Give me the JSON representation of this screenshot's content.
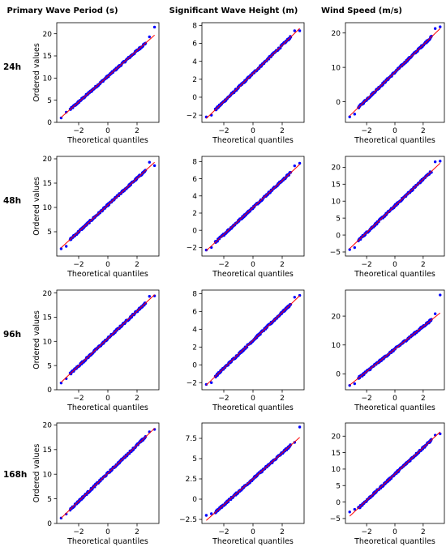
{
  "columns": [
    "Primary Wave Period (s)",
    "Significant Wave Height (m)",
    "Wind Speed (m/s)"
  ],
  "rows": [
    "24h",
    "48h",
    "96h",
    "168h"
  ],
  "chart_data": [
    {
      "type": "scatter",
      "id": "24h-period",
      "title": "Primary Wave Period (s)",
      "xlabel": "Theoretical quantiles",
      "ylabel": "Ordered values",
      "xlim": [
        -3.5,
        3.5
      ],
      "ylim": [
        0,
        22.5
      ],
      "xticks": [
        -2,
        0,
        2
      ],
      "yticks": [
        0,
        5,
        10,
        15,
        20
      ],
      "slope": 2.9,
      "intercept": 10.4,
      "q_low": [
        -3.2,
        -2.85
      ],
      "v_low": [
        1.0,
        2.3
      ],
      "q_high": [
        2.85,
        3.2
      ],
      "v_high": [
        19.3,
        21.5
      ],
      "points": [
        [
          -3.2,
          1.0
        ],
        [
          -2.85,
          2.3
        ],
        [
          2.85,
          19.3
        ],
        [
          3.2,
          21.5
        ]
      ],
      "line": [
        [
          -3.2,
          1.12
        ],
        [
          3.2,
          19.68
        ]
      ]
    },
    {
      "type": "scatter",
      "id": "24h-height",
      "title": "Significant Wave Height (m)",
      "xlabel": "Theoretical quantiles",
      "ylabel": "",
      "xlim": [
        -3.5,
        3.5
      ],
      "ylim": [
        -2.8,
        8.3
      ],
      "xticks": [
        -2,
        0,
        2
      ],
      "yticks": [
        -2,
        0,
        2,
        4,
        6,
        8
      ],
      "slope": 1.57,
      "intercept": 2.65,
      "q_low": [
        -3.2,
        -2.85
      ],
      "v_low": [
        -2.2,
        -2.0
      ],
      "q_high": [
        2.85,
        3.2
      ],
      "v_high": [
        7.4,
        7.4
      ],
      "points": [
        [
          -3.2,
          -2.2
        ],
        [
          -2.85,
          -2.0
        ],
        [
          2.85,
          7.4
        ],
        [
          3.2,
          7.4
        ]
      ],
      "line": [
        [
          -3.2,
          -2.37
        ],
        [
          3.2,
          7.67
        ]
      ]
    },
    {
      "type": "scatter",
      "id": "24h-wind",
      "title": "Wind Speed (m/s)",
      "xlabel": "Theoretical quantiles",
      "ylabel": "",
      "xlim": [
        -3.5,
        3.5
      ],
      "ylim": [
        -6.0,
        23.0
      ],
      "xticks": [
        -2,
        0,
        2
      ],
      "yticks": [
        0,
        10,
        20
      ],
      "slope": 3.97,
      "intercept": 8.6,
      "q_low": [
        -3.2,
        -2.85
      ],
      "v_low": [
        -4.4,
        -3.6
      ],
      "q_high": [
        2.85,
        3.2
      ],
      "v_high": [
        21.3,
        21.8
      ],
      "points": [
        [
          -3.2,
          -4.4
        ],
        [
          -2.85,
          -3.6
        ],
        [
          2.85,
          21.3
        ],
        [
          3.2,
          21.8
        ]
      ],
      "line": [
        [
          -3.2,
          -4.1
        ],
        [
          3.2,
          21.3
        ]
      ]
    },
    {
      "type": "scatter",
      "id": "48h-period",
      "title": "",
      "xlabel": "Theoretical quantiles",
      "ylabel": "Ordered values",
      "xlim": [
        -3.5,
        3.5
      ],
      "ylim": [
        0,
        20.5
      ],
      "xticks": [
        -2,
        0,
        2
      ],
      "yticks": [
        5,
        10,
        15,
        20
      ],
      "slope": 2.75,
      "intercept": 10.5,
      "q_low": [
        -3.2,
        -2.85
      ],
      "v_low": [
        1.5,
        2.0
      ],
      "q_high": [
        2.85,
        3.2
      ],
      "v_high": [
        19.3,
        18.6
      ],
      "points": [
        [
          -3.2,
          1.5
        ],
        [
          -2.85,
          2.0
        ],
        [
          2.85,
          19.3
        ],
        [
          3.2,
          18.6
        ]
      ],
      "line": [
        [
          -3.2,
          1.7
        ],
        [
          3.2,
          19.3
        ]
      ]
    },
    {
      "type": "scatter",
      "id": "48h-height",
      "title": "",
      "xlabel": "Theoretical quantiles",
      "ylabel": "",
      "xlim": [
        -3.5,
        3.5
      ],
      "ylim": [
        -3.0,
        8.6
      ],
      "xticks": [
        -2,
        0,
        2
      ],
      "yticks": [
        -2,
        0,
        2,
        4,
        6,
        8
      ],
      "slope": 1.57,
      "intercept": 2.65,
      "q_low": [
        -3.2,
        -2.85
      ],
      "v_low": [
        -2.3,
        -2.0
      ],
      "q_high": [
        2.85,
        3.2
      ],
      "v_high": [
        7.5,
        7.8
      ],
      "points": [
        [
          -3.2,
          -2.3
        ],
        [
          -2.85,
          -2.0
        ],
        [
          2.85,
          7.5
        ],
        [
          3.2,
          7.8
        ]
      ],
      "line": [
        [
          -3.2,
          -2.37
        ],
        [
          3.2,
          7.67
        ]
      ]
    },
    {
      "type": "scatter",
      "id": "48h-wind",
      "title": "",
      "xlabel": "Theoretical quantiles",
      "ylabel": "",
      "xlim": [
        -3.5,
        3.5
      ],
      "ylim": [
        -6.2,
        23.2
      ],
      "xticks": [
        -2,
        0,
        2
      ],
      "yticks": [
        -5,
        0,
        5,
        10,
        15,
        20
      ],
      "slope": 3.94,
      "intercept": 8.6,
      "q_low": [
        -3.2,
        -2.85
      ],
      "v_low": [
        -4.3,
        -3.7
      ],
      "q_high": [
        2.85,
        3.2
      ],
      "v_high": [
        21.6,
        21.8
      ],
      "points": [
        [
          -3.2,
          -4.3
        ],
        [
          -2.85,
          -3.7
        ],
        [
          2.85,
          21.6
        ],
        [
          3.2,
          21.8
        ]
      ],
      "line": [
        [
          -3.2,
          -4.0
        ],
        [
          3.2,
          21.2
        ]
      ]
    },
    {
      "type": "scatter",
      "id": "96h-period",
      "title": "",
      "xlabel": "Theoretical quantiles",
      "ylabel": "Ordered values",
      "xlim": [
        -3.5,
        3.5
      ],
      "ylim": [
        0,
        20.6
      ],
      "xticks": [
        -2,
        0,
        2
      ],
      "yticks": [
        0,
        5,
        10,
        15,
        20
      ],
      "slope": 2.83,
      "intercept": 10.6,
      "q_low": [
        -3.2,
        -2.85
      ],
      "v_low": [
        1.4,
        2.3
      ],
      "q_high": [
        2.85,
        3.2
      ],
      "v_high": [
        19.3,
        19.4
      ],
      "points": [
        [
          -3.2,
          1.4
        ],
        [
          -2.85,
          2.3
        ],
        [
          2.85,
          19.3
        ],
        [
          3.2,
          19.4
        ]
      ],
      "line": [
        [
          -3.2,
          1.55
        ],
        [
          3.2,
          19.66
        ]
      ]
    },
    {
      "type": "scatter",
      "id": "96h-height",
      "title": "",
      "xlabel": "Theoretical quantiles",
      "ylabel": "",
      "xlim": [
        -3.5,
        3.5
      ],
      "ylim": [
        -2.8,
        8.4
      ],
      "xticks": [
        -2,
        0,
        2
      ],
      "yticks": [
        -2,
        0,
        2,
        4,
        6,
        8
      ],
      "slope": 1.57,
      "intercept": 2.75,
      "q_low": [
        -3.2,
        -2.85
      ],
      "v_low": [
        -2.2,
        -2.0
      ],
      "q_high": [
        2.85,
        3.2
      ],
      "v_high": [
        7.6,
        7.8
      ],
      "points": [
        [
          -3.2,
          -2.2
        ],
        [
          -2.85,
          -2.0
        ],
        [
          2.85,
          7.6
        ],
        [
          3.2,
          7.8
        ]
      ],
      "line": [
        [
          -3.2,
          -2.27
        ],
        [
          3.2,
          7.77
        ]
      ]
    },
    {
      "type": "scatter",
      "id": "96h-wind",
      "title": "",
      "xlabel": "Theoretical quantiles",
      "ylabel": "",
      "xlim": [
        -3.5,
        3.5
      ],
      "ylim": [
        -5.5,
        29.0
      ],
      "xticks": [
        -2,
        0,
        2
      ],
      "yticks": [
        0,
        10,
        20
      ],
      "slope": 3.9,
      "intercept": 8.6,
      "q_low": [
        -3.2,
        -2.85
      ],
      "v_low": [
        -4.0,
        -3.4
      ],
      "q_high": [
        2.85,
        3.2
      ],
      "v_high": [
        20.8,
        27.3
      ],
      "points": [
        [
          -3.2,
          -4.0
        ],
        [
          -2.85,
          -3.4
        ],
        [
          2.85,
          20.8
        ],
        [
          3.2,
          27.3
        ]
      ],
      "line": [
        [
          -3.2,
          -3.88
        ],
        [
          3.2,
          21.08
        ]
      ]
    },
    {
      "type": "scatter",
      "id": "168h-period",
      "title": "",
      "xlabel": "Theoretical quantiles",
      "ylabel": "Ordered values",
      "xlim": [
        -3.5,
        3.5
      ],
      "ylim": [
        0,
        20.4
      ],
      "xticks": [
        -2,
        0,
        2
      ],
      "yticks": [
        0,
        5,
        10,
        15,
        20
      ],
      "slope": 2.85,
      "intercept": 10.2,
      "q_low": [
        -3.2,
        -2.85
      ],
      "v_low": [
        1.1,
        1.9
      ],
      "q_high": [
        2.85,
        3.2
      ],
      "v_high": [
        18.6,
        19.1
      ],
      "points": [
        [
          -3.2,
          1.1
        ],
        [
          -2.85,
          1.9
        ],
        [
          2.85,
          18.6
        ],
        [
          3.2,
          19.1
        ]
      ],
      "line": [
        [
          -3.2,
          1.08
        ],
        [
          3.2,
          19.32
        ]
      ]
    },
    {
      "type": "scatter",
      "id": "168h-height",
      "title": "",
      "xlabel": "Theoretical quantiles",
      "ylabel": "",
      "xlim": [
        -3.5,
        3.5
      ],
      "ylim": [
        -3.0,
        9.4
      ],
      "xticks": [
        -2,
        0,
        2
      ],
      "yticks": [
        -2.5,
        0.0,
        2.5,
        5.0,
        7.5
      ],
      "slope": 1.6,
      "intercept": 2.5,
      "q_low": [
        -3.2,
        -2.85
      ],
      "v_low": [
        -2.0,
        -1.8
      ],
      "q_high": [
        2.85,
        3.2
      ],
      "v_high": [
        7.0,
        8.9
      ],
      "points": [
        [
          -3.2,
          -2.0
        ],
        [
          -2.85,
          -1.8
        ],
        [
          2.85,
          7.0
        ],
        [
          3.2,
          8.9
        ]
      ],
      "line": [
        [
          -3.2,
          -2.62
        ],
        [
          3.2,
          7.62
        ]
      ]
    },
    {
      "type": "scatter",
      "id": "168h-wind",
      "title": "",
      "xlabel": "Theoretical quantiles",
      "ylabel": "",
      "xlim": [
        -3.5,
        3.5
      ],
      "ylim": [
        -6.5,
        24.0
      ],
      "xticks": [
        -2,
        0,
        2
      ],
      "yticks": [
        -5,
        0,
        5,
        10,
        15,
        20
      ],
      "slope": 4.0,
      "intercept": 8.5,
      "q_low": [
        -3.2,
        -2.85
      ],
      "v_low": [
        -3.0,
        -2.2
      ],
      "q_high": [
        2.85,
        3.2
      ],
      "v_high": [
        20.3,
        20.7
      ],
      "points": [
        [
          -3.2,
          -3.0
        ],
        [
          -2.85,
          -2.2
        ],
        [
          2.85,
          20.3
        ],
        [
          3.2,
          20.7
        ]
      ],
      "line": [
        [
          -3.2,
          -4.3
        ],
        [
          3.2,
          21.3
        ]
      ]
    }
  ],
  "colors": {
    "points": "#0000ff",
    "line": "#ff0000",
    "axis": "#000000"
  }
}
